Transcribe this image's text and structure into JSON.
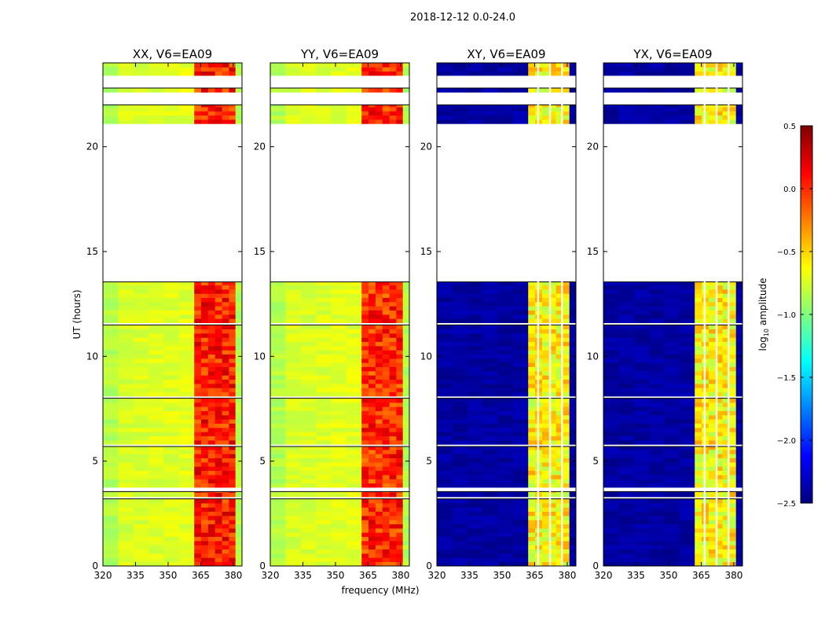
{
  "chart_data": {
    "type": "heatmap",
    "suptitle": "2018-12-12 0.0-24.0",
    "xlabel": "frequency (MHz)",
    "ylabel": "UT (hours)",
    "xlim": [
      320,
      384
    ],
    "ylim": [
      0,
      24
    ],
    "xticks": [
      "320",
      "335",
      "350",
      "365",
      "380"
    ],
    "yticks": [
      "0",
      "5",
      "10",
      "15",
      "20"
    ],
    "colormap": "jet",
    "colorbar": {
      "label": "log10 amplitude",
      "label_main": "log",
      "label_sub": "10",
      "label_rest": " amplitude",
      "range": [
        -2.5,
        0.5
      ],
      "ticks": [
        "0.5",
        "0.0",
        "−0.5",
        "−1.0",
        "−1.5",
        "−2.0",
        "−2.5"
      ]
    },
    "data_time_segments_hours": [
      [
        0,
        3.2
      ],
      [
        3.3,
        3.55
      ],
      [
        3.75,
        5.7
      ],
      [
        5.8,
        8.0
      ],
      [
        8.1,
        11.5
      ],
      [
        11.6,
        13.55
      ],
      [
        21.1,
        22.0
      ],
      [
        22.6,
        22.8
      ],
      [
        23.4,
        24.0
      ]
    ],
    "flagged_channel_lines_MHz": [
      366.5,
      372,
      377.5
    ],
    "panels": [
      {
        "title": "XX, V6=EA09",
        "low_band": {
          "freq": [
            320,
            362
          ],
          "log_amp": -0.75
        },
        "high_band": {
          "freq": [
            362,
            381
          ],
          "log_amp": 0.05
        },
        "outside": {
          "freq": [
            381,
            384
          ],
          "log_amp": -0.85
        }
      },
      {
        "title": "YY, V6=EA09",
        "low_band": {
          "freq": [
            320,
            362
          ],
          "log_amp": -0.75
        },
        "high_band": {
          "freq": [
            362,
            381
          ],
          "log_amp": 0.0
        },
        "outside": {
          "freq": [
            381,
            384
          ],
          "log_amp": -0.85
        }
      },
      {
        "title": "XY, V6=EA09",
        "low_band": {
          "freq": [
            320,
            362
          ],
          "log_amp": -2.4
        },
        "high_band": {
          "freq": [
            362,
            381
          ],
          "log_amp": -0.6
        },
        "outside": {
          "freq": [
            381,
            384
          ],
          "log_amp": -2.4
        }
      },
      {
        "title": "YX, V6=EA09",
        "low_band": {
          "freq": [
            320,
            362
          ],
          "log_amp": -2.4
        },
        "high_band": {
          "freq": [
            362,
            381
          ],
          "log_amp": -0.6
        },
        "outside": {
          "freq": [
            381,
            384
          ],
          "log_amp": -2.4
        }
      }
    ]
  }
}
